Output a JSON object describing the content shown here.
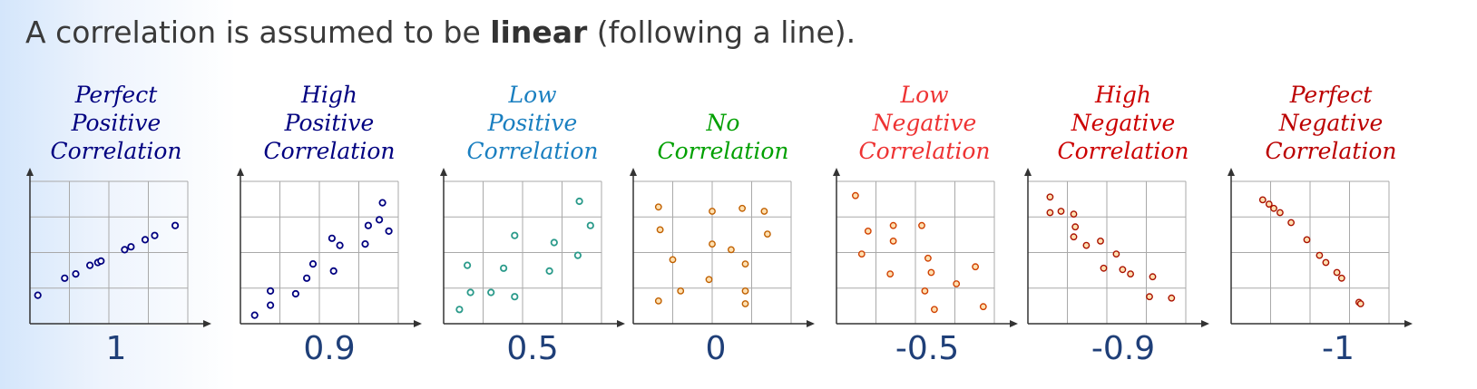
{
  "intro": {
    "before": "A correlation is assumed to be ",
    "bold": "linear",
    "after": " (following a line)."
  },
  "chart_data": [
    {
      "type": "scatter",
      "title_lines": [
        "Perfect",
        "Positive",
        "Correlation"
      ],
      "value_label": "1",
      "color": "#000080",
      "xlim": [
        0,
        100
      ],
      "ylim": [
        0,
        100
      ],
      "grid": true,
      "points": [
        [
          5,
          20
        ],
        [
          22,
          32
        ],
        [
          29,
          35
        ],
        [
          38,
          41
        ],
        [
          43,
          43
        ],
        [
          45,
          44
        ],
        [
          60,
          52
        ],
        [
          64,
          54
        ],
        [
          73,
          59
        ],
        [
          79,
          62
        ],
        [
          92,
          69
        ]
      ]
    },
    {
      "type": "scatter",
      "title_lines": [
        "High",
        "Positive",
        "Correlation"
      ],
      "value_label": "0.9",
      "color": "#000080",
      "xlim": [
        0,
        100
      ],
      "ylim": [
        0,
        100
      ],
      "grid": true,
      "points": [
        [
          9,
          6
        ],
        [
          19,
          13
        ],
        [
          19,
          23
        ],
        [
          35,
          21
        ],
        [
          42,
          32
        ],
        [
          46,
          42
        ],
        [
          59,
          37
        ],
        [
          58,
          60
        ],
        [
          63,
          55
        ],
        [
          79,
          56
        ],
        [
          81,
          69
        ],
        [
          88,
          73
        ],
        [
          90,
          85
        ],
        [
          94,
          65
        ]
      ]
    },
    {
      "type": "scatter",
      "title_lines": [
        "Low",
        "Positive",
        "Correlation"
      ],
      "value_label": "0.5",
      "color": "#1a7fc0",
      "dot_color": "#2a9a8a",
      "xlim": [
        0,
        100
      ],
      "ylim": [
        0,
        100
      ],
      "grid": true,
      "points": [
        [
          10,
          10
        ],
        [
          15,
          41
        ],
        [
          17,
          22
        ],
        [
          30,
          22
        ],
        [
          38,
          39
        ],
        [
          45,
          19
        ],
        [
          45,
          62
        ],
        [
          67,
          37
        ],
        [
          70,
          57
        ],
        [
          85,
          48
        ],
        [
          86,
          86
        ],
        [
          93,
          69
        ]
      ]
    },
    {
      "type": "scatter",
      "title_lines": [
        "No",
        "Correlation"
      ],
      "value_label": "0",
      "color": "#00a000",
      "dot_color": "#ff9900",
      "dot_stroke": "#c06000",
      "xlim": [
        0,
        100
      ],
      "ylim": [
        0,
        100
      ],
      "grid": true,
      "points": [
        [
          16,
          82
        ],
        [
          17,
          66
        ],
        [
          16,
          16
        ],
        [
          25,
          45
        ],
        [
          30,
          23
        ],
        [
          50,
          79
        ],
        [
          50,
          56
        ],
        [
          48,
          31
        ],
        [
          62,
          52
        ],
        [
          69,
          81
        ],
        [
          71,
          42
        ],
        [
          71,
          23
        ],
        [
          71,
          14
        ],
        [
          83,
          79
        ],
        [
          85,
          63
        ]
      ]
    },
    {
      "type": "scatter",
      "title_lines": [
        "Low",
        "Negative",
        "Correlation"
      ],
      "value_label": "-0.5",
      "color": "#ee3333",
      "dot_color": "#ff8800",
      "dot_stroke": "#d04000",
      "xlim": [
        0,
        100
      ],
      "ylim": [
        0,
        100
      ],
      "grid": true,
      "points": [
        [
          12,
          90
        ],
        [
          16,
          49
        ],
        [
          20,
          65
        ],
        [
          36,
          69
        ],
        [
          36,
          58
        ],
        [
          34,
          35
        ],
        [
          54,
          69
        ],
        [
          58,
          46
        ],
        [
          60,
          36
        ],
        [
          56,
          23
        ],
        [
          62,
          10
        ],
        [
          76,
          28
        ],
        [
          88,
          40
        ],
        [
          93,
          12
        ]
      ]
    },
    {
      "type": "scatter",
      "title_lines": [
        "High",
        "Negative",
        "Correlation"
      ],
      "value_label": "-0.9",
      "color": "#cc0000",
      "dot_color": "#ff4400",
      "dot_stroke": "#aa1100",
      "xlim": [
        0,
        100
      ],
      "ylim": [
        0,
        100
      ],
      "grid": true,
      "points": [
        [
          14,
          89
        ],
        [
          14,
          78
        ],
        [
          21,
          79
        ],
        [
          29,
          77
        ],
        [
          30,
          68
        ],
        [
          29,
          61
        ],
        [
          37,
          55
        ],
        [
          46,
          58
        ],
        [
          48,
          39
        ],
        [
          56,
          49
        ],
        [
          60,
          38
        ],
        [
          65,
          35
        ],
        [
          79,
          33
        ],
        [
          77,
          19
        ],
        [
          91,
          18
        ]
      ]
    },
    {
      "type": "scatter",
      "title_lines": [
        "Perfect",
        "Negative",
        "Correlation"
      ],
      "value_label": "-1",
      "color": "#bb0000",
      "dot_color": "#ff3300",
      "dot_stroke": "#aa1100",
      "xlim": [
        0,
        100
      ],
      "ylim": [
        0,
        100
      ],
      "grid": true,
      "points": [
        [
          20,
          87
        ],
        [
          24,
          84
        ],
        [
          27,
          81
        ],
        [
          31,
          78
        ],
        [
          38,
          71
        ],
        [
          48,
          59
        ],
        [
          56,
          48
        ],
        [
          60,
          43
        ],
        [
          67,
          36
        ],
        [
          70,
          32
        ],
        [
          81,
          15
        ],
        [
          82,
          14
        ]
      ]
    }
  ]
}
